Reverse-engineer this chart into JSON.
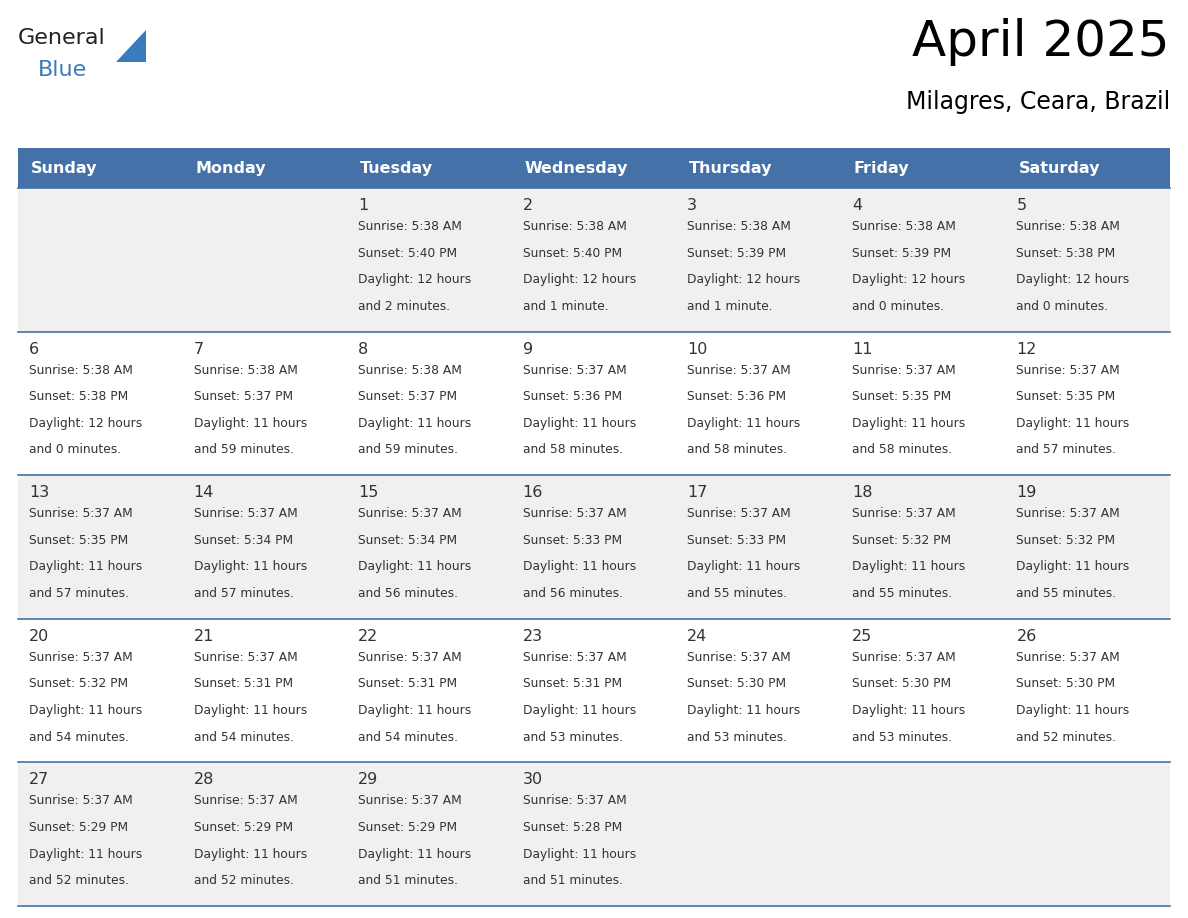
{
  "title": "April 2025",
  "subtitle": "Milagres, Ceara, Brazil",
  "header_bg_color": "#4472a8",
  "header_text_color": "#ffffff",
  "row_bg_colors": [
    "#f0f0f0",
    "#ffffff",
    "#f0f0f0",
    "#ffffff",
    "#f0f0f0"
  ],
  "text_color": "#333333",
  "border_color": "#4472a8",
  "days_of_week": [
    "Sunday",
    "Monday",
    "Tuesday",
    "Wednesday",
    "Thursday",
    "Friday",
    "Saturday"
  ],
  "logo_general_color": "#222222",
  "logo_blue_color": "#3a7bbf",
  "logo_triangle_color": "#3a7bbf",
  "calendar_data": [
    [
      {
        "day": "",
        "sunrise": "",
        "sunset": "",
        "daylight_h": "",
        "daylight_m": ""
      },
      {
        "day": "",
        "sunrise": "",
        "sunset": "",
        "daylight_h": "",
        "daylight_m": ""
      },
      {
        "day": "1",
        "sunrise": "5:38 AM",
        "sunset": "5:40 PM",
        "daylight_h": "12",
        "daylight_m": "2"
      },
      {
        "day": "2",
        "sunrise": "5:38 AM",
        "sunset": "5:40 PM",
        "daylight_h": "12",
        "daylight_m": "1"
      },
      {
        "day": "3",
        "sunrise": "5:38 AM",
        "sunset": "5:39 PM",
        "daylight_h": "12",
        "daylight_m": "1"
      },
      {
        "day": "4",
        "sunrise": "5:38 AM",
        "sunset": "5:39 PM",
        "daylight_h": "12",
        "daylight_m": "0"
      },
      {
        "day": "5",
        "sunrise": "5:38 AM",
        "sunset": "5:38 PM",
        "daylight_h": "12",
        "daylight_m": "0"
      }
    ],
    [
      {
        "day": "6",
        "sunrise": "5:38 AM",
        "sunset": "5:38 PM",
        "daylight_h": "12",
        "daylight_m": "0"
      },
      {
        "day": "7",
        "sunrise": "5:38 AM",
        "sunset": "5:37 PM",
        "daylight_h": "11",
        "daylight_m": "59"
      },
      {
        "day": "8",
        "sunrise": "5:38 AM",
        "sunset": "5:37 PM",
        "daylight_h": "11",
        "daylight_m": "59"
      },
      {
        "day": "9",
        "sunrise": "5:37 AM",
        "sunset": "5:36 PM",
        "daylight_h": "11",
        "daylight_m": "58"
      },
      {
        "day": "10",
        "sunrise": "5:37 AM",
        "sunset": "5:36 PM",
        "daylight_h": "11",
        "daylight_m": "58"
      },
      {
        "day": "11",
        "sunrise": "5:37 AM",
        "sunset": "5:35 PM",
        "daylight_h": "11",
        "daylight_m": "58"
      },
      {
        "day": "12",
        "sunrise": "5:37 AM",
        "sunset": "5:35 PM",
        "daylight_h": "11",
        "daylight_m": "57"
      }
    ],
    [
      {
        "day": "13",
        "sunrise": "5:37 AM",
        "sunset": "5:35 PM",
        "daylight_h": "11",
        "daylight_m": "57"
      },
      {
        "day": "14",
        "sunrise": "5:37 AM",
        "sunset": "5:34 PM",
        "daylight_h": "11",
        "daylight_m": "57"
      },
      {
        "day": "15",
        "sunrise": "5:37 AM",
        "sunset": "5:34 PM",
        "daylight_h": "11",
        "daylight_m": "56"
      },
      {
        "day": "16",
        "sunrise": "5:37 AM",
        "sunset": "5:33 PM",
        "daylight_h": "11",
        "daylight_m": "56"
      },
      {
        "day": "17",
        "sunrise": "5:37 AM",
        "sunset": "5:33 PM",
        "daylight_h": "11",
        "daylight_m": "55"
      },
      {
        "day": "18",
        "sunrise": "5:37 AM",
        "sunset": "5:32 PM",
        "daylight_h": "11",
        "daylight_m": "55"
      },
      {
        "day": "19",
        "sunrise": "5:37 AM",
        "sunset": "5:32 PM",
        "daylight_h": "11",
        "daylight_m": "55"
      }
    ],
    [
      {
        "day": "20",
        "sunrise": "5:37 AM",
        "sunset": "5:32 PM",
        "daylight_h": "11",
        "daylight_m": "54"
      },
      {
        "day": "21",
        "sunrise": "5:37 AM",
        "sunset": "5:31 PM",
        "daylight_h": "11",
        "daylight_m": "54"
      },
      {
        "day": "22",
        "sunrise": "5:37 AM",
        "sunset": "5:31 PM",
        "daylight_h": "11",
        "daylight_m": "54"
      },
      {
        "day": "23",
        "sunrise": "5:37 AM",
        "sunset": "5:31 PM",
        "daylight_h": "11",
        "daylight_m": "53"
      },
      {
        "day": "24",
        "sunrise": "5:37 AM",
        "sunset": "5:30 PM",
        "daylight_h": "11",
        "daylight_m": "53"
      },
      {
        "day": "25",
        "sunrise": "5:37 AM",
        "sunset": "5:30 PM",
        "daylight_h": "11",
        "daylight_m": "53"
      },
      {
        "day": "26",
        "sunrise": "5:37 AM",
        "sunset": "5:30 PM",
        "daylight_h": "11",
        "daylight_m": "52"
      }
    ],
    [
      {
        "day": "27",
        "sunrise": "5:37 AM",
        "sunset": "5:29 PM",
        "daylight_h": "11",
        "daylight_m": "52"
      },
      {
        "day": "28",
        "sunrise": "5:37 AM",
        "sunset": "5:29 PM",
        "daylight_h": "11",
        "daylight_m": "52"
      },
      {
        "day": "29",
        "sunrise": "5:37 AM",
        "sunset": "5:29 PM",
        "daylight_h": "11",
        "daylight_m": "51"
      },
      {
        "day": "30",
        "sunrise": "5:37 AM",
        "sunset": "5:28 PM",
        "daylight_h": "11",
        "daylight_m": "51"
      },
      {
        "day": "",
        "sunrise": "",
        "sunset": "",
        "daylight_h": "",
        "daylight_m": ""
      },
      {
        "day": "",
        "sunrise": "",
        "sunset": "",
        "daylight_h": "",
        "daylight_m": ""
      },
      {
        "day": "",
        "sunrise": "",
        "sunset": "",
        "daylight_h": "",
        "daylight_m": ""
      }
    ]
  ]
}
